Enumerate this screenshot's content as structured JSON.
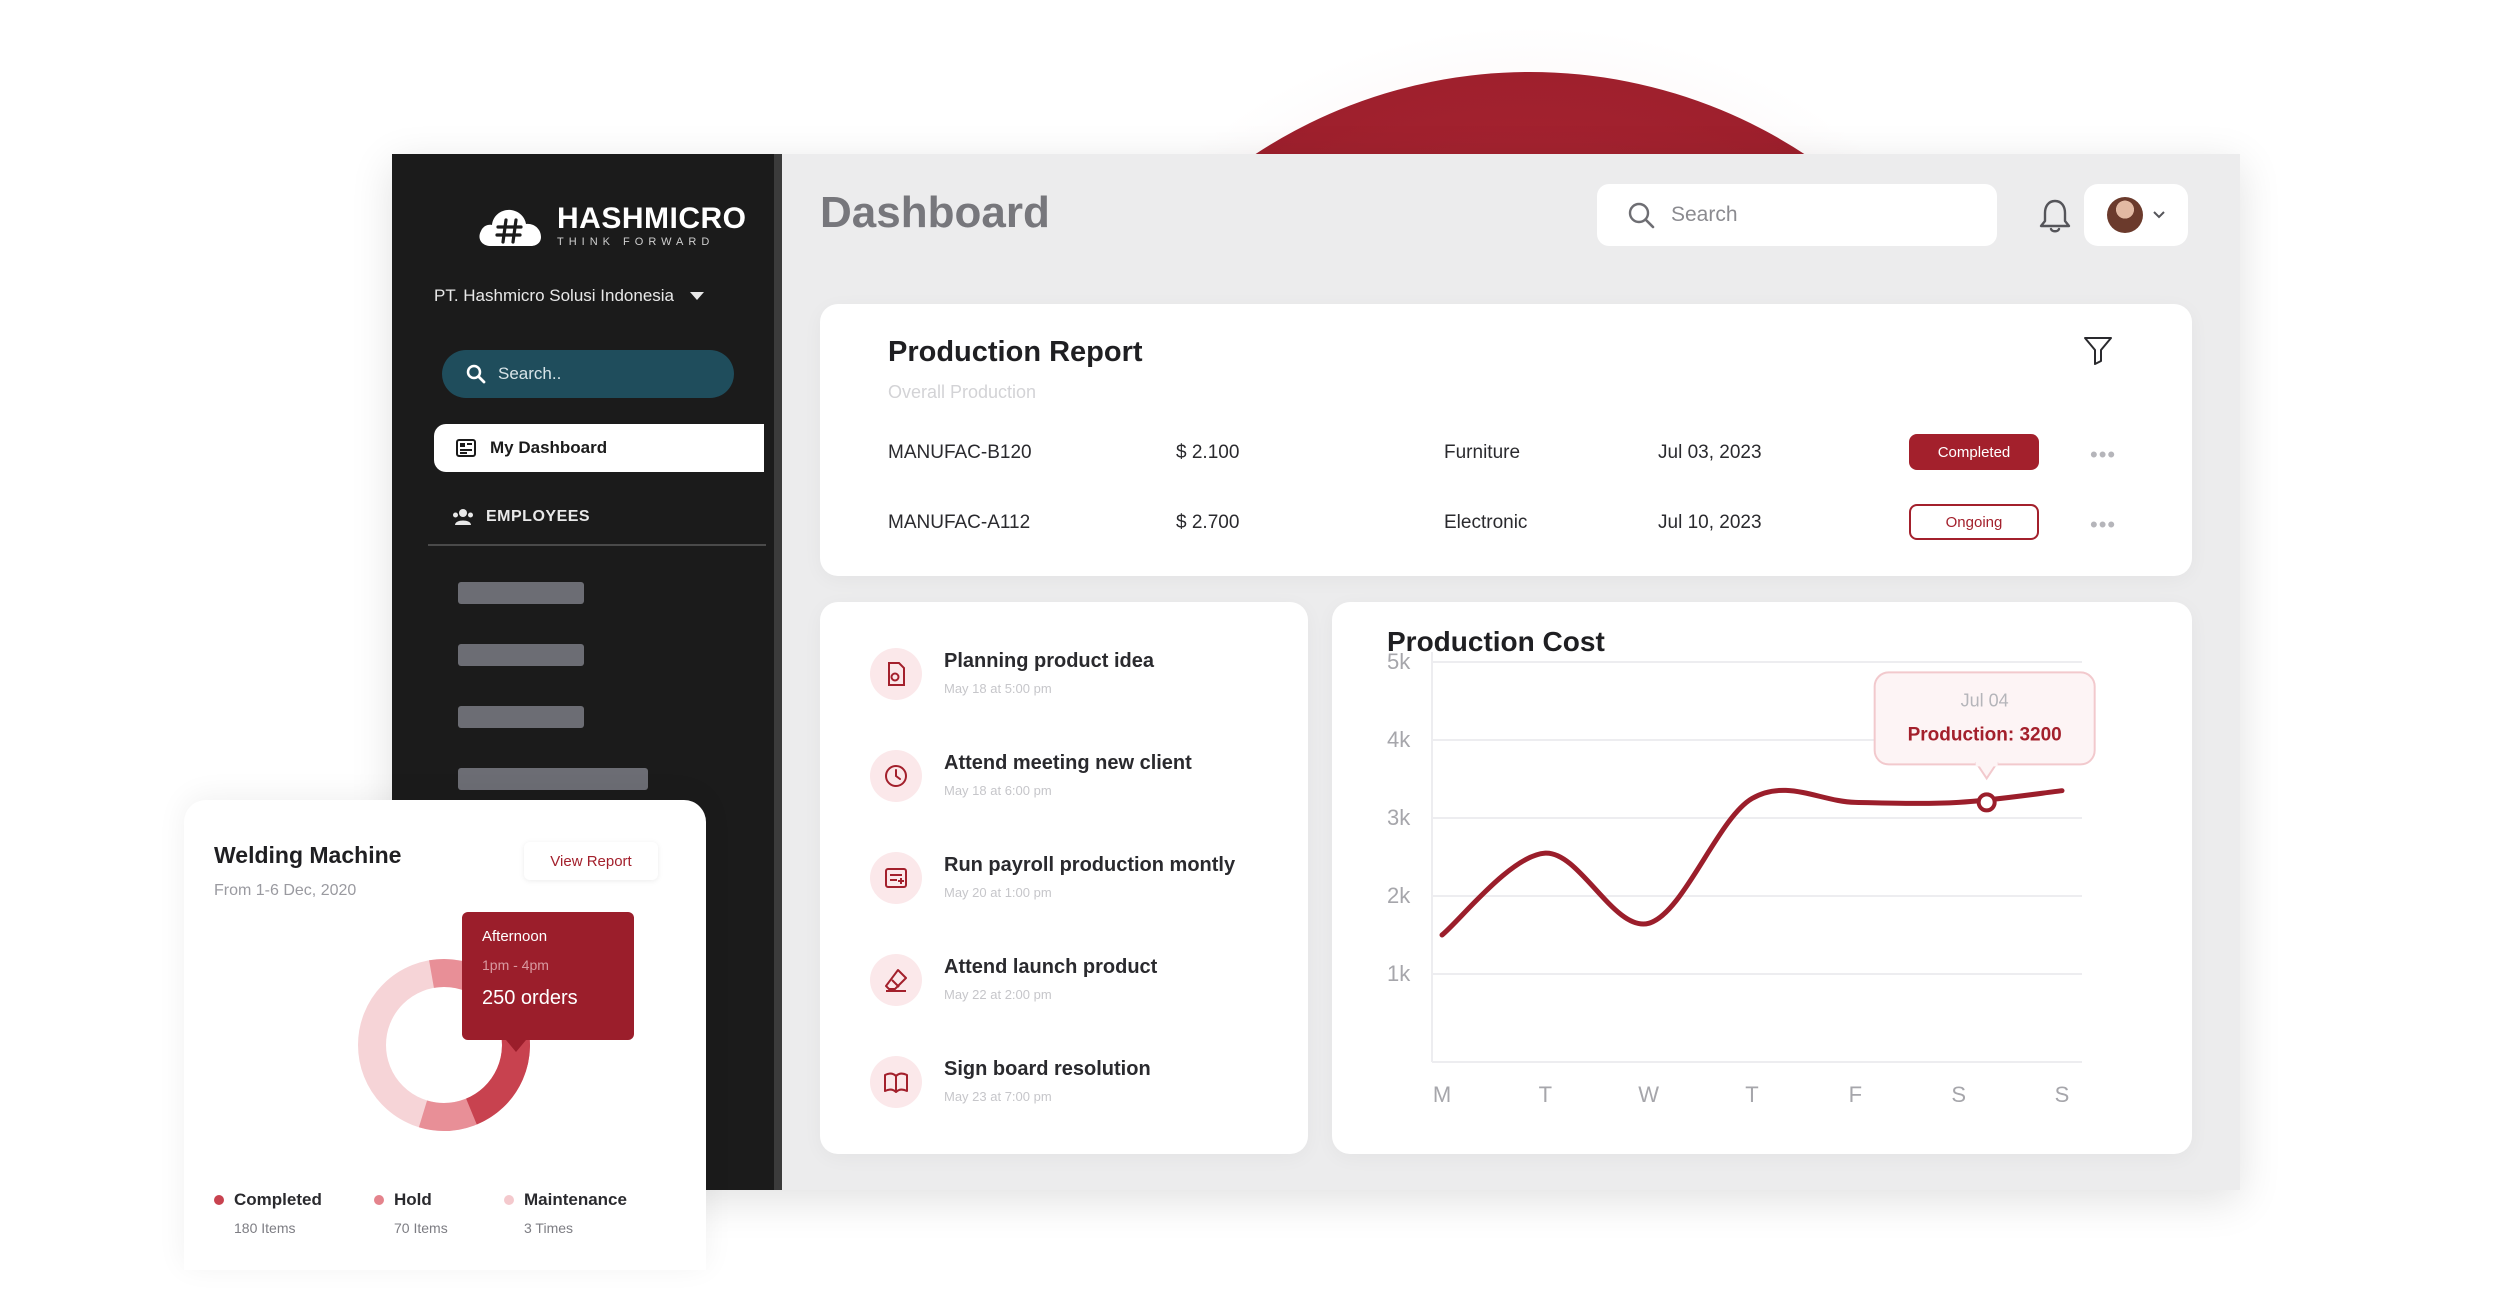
{
  "brand": {
    "name": "HASHMICRO",
    "tagline": "THINK FORWARD"
  },
  "sidebar": {
    "company": "PT. Hashmicro Solusi Indonesia",
    "search_placeholder": "Search..",
    "active_item": "My Dashboard",
    "section": "EMPLOYEES"
  },
  "header": {
    "title": "Dashboard",
    "search_placeholder": "Search"
  },
  "production_report": {
    "title": "Production Report",
    "subtitle": "Overall Production",
    "rows": [
      {
        "code": "MANUFAC-B120",
        "amount": "$ 2.100",
        "category": "Furniture",
        "date": "Jul 03, 2023",
        "status": "Completed"
      },
      {
        "code": "MANUFAC-A112",
        "amount": "$ 2.700",
        "category": "Electronic",
        "date": "Jul 10, 2023",
        "status": "Ongoing"
      }
    ]
  },
  "tasks": [
    {
      "title": "Planning product idea",
      "time": "May 18 at 5:00 pm",
      "icon": "document-icon"
    },
    {
      "title": "Attend meeting new client",
      "time": "May 18 at 6:00 pm",
      "icon": "clock-icon"
    },
    {
      "title": "Run payroll production montly",
      "time": "May 20 at 1:00 pm",
      "icon": "payroll-icon"
    },
    {
      "title": "Attend launch product",
      "time": "May 22 at 2:00 pm",
      "icon": "eraser-icon"
    },
    {
      "title": "Sign board resolution",
      "time": "May 23 at 7:00 pm",
      "icon": "book-icon"
    }
  ],
  "production_cost": {
    "title": "Production Cost",
    "tooltip_date": "Jul 04",
    "tooltip_value": "Production: 3200"
  },
  "chart_data": {
    "type": "line",
    "title": "Production Cost",
    "categories": [
      "M",
      "T",
      "W",
      "T",
      "F",
      "S",
      "S"
    ],
    "y_ticks": [
      "1k",
      "2k",
      "3k",
      "4k",
      "5k"
    ],
    "ylim": [
      0,
      5000
    ],
    "series": [
      {
        "values": [
          1500,
          2550,
          1650,
          3250,
          3200,
          3200,
          3350
        ]
      }
    ],
    "highlight": {
      "date": "Jul 04",
      "label": "Production: 3200",
      "value": 3200
    },
    "grid": true,
    "color": "#9b1e2b"
  },
  "welding": {
    "title": "Welding Machine",
    "subtitle": "From 1-6 Dec, 2020",
    "view_report": "View Report",
    "tooltip": {
      "label": "Afternoon",
      "time": "1pm - 4pm",
      "value": "250 orders"
    },
    "legend": [
      {
        "label": "Completed",
        "value": "180 Items",
        "color": "#c8424f"
      },
      {
        "label": "Hold",
        "value": "70 Items",
        "color": "#e4838c"
      },
      {
        "label": "Maintenance",
        "value": "3 Times",
        "color": "#f4c9cd"
      }
    ]
  },
  "colors": {
    "accent": "#a3202c",
    "sidebar": "#1b1b1b",
    "search_pill": "#1f4d5c"
  }
}
